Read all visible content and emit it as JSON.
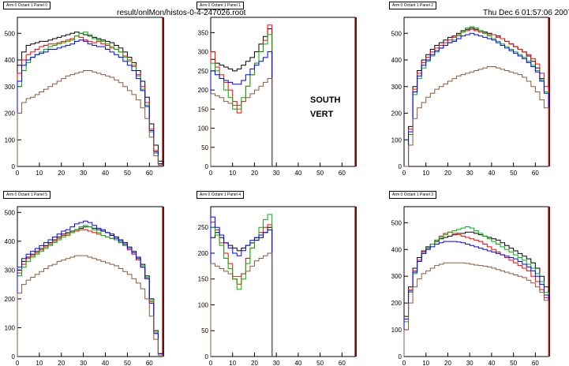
{
  "header": {
    "filename": "result/onlMon/histos-0-4-247026.root",
    "timestamp": "Thu Dec  6 01:57:06 2007"
  },
  "annotations": [
    "SOUTH",
    "VERT"
  ],
  "colors": [
    "#000000",
    "#ff0000",
    "#00b000",
    "#0000ff",
    "#8b5a3c"
  ],
  "chart_data": [
    {
      "type": "line",
      "title": "Arm 0 Octant 1 Panel 0",
      "xlim": [
        0,
        66
      ],
      "ylim": [
        0,
        560
      ],
      "xticks": [
        0,
        10,
        20,
        30,
        40,
        50,
        60
      ],
      "yticks": [
        0,
        100,
        200,
        300,
        400,
        500
      ],
      "x": [
        0,
        2,
        4,
        6,
        8,
        10,
        12,
        14,
        16,
        18,
        20,
        22,
        24,
        26,
        28,
        30,
        32,
        34,
        36,
        38,
        40,
        42,
        44,
        46,
        48,
        50,
        52,
        54,
        56,
        58,
        60,
        62,
        64
      ],
      "series": [
        {
          "values": [
            380,
            430,
            455,
            460,
            465,
            470,
            470,
            475,
            480,
            485,
            490,
            495,
            500,
            505,
            500,
            495,
            490,
            485,
            480,
            475,
            470,
            465,
            455,
            445,
            430,
            410,
            390,
            360,
            320,
            260,
            160,
            80,
            20
          ]
        },
        {
          "values": [
            350,
            400,
            420,
            430,
            440,
            450,
            455,
            460,
            460,
            465,
            470,
            475,
            480,
            490,
            485,
            475,
            470,
            465,
            470,
            460,
            455,
            445,
            440,
            430,
            415,
            400,
            380,
            345,
            300,
            240,
            140,
            60,
            10
          ]
        },
        {
          "values": [
            300,
            360,
            390,
            410,
            420,
            430,
            440,
            450,
            455,
            460,
            465,
            470,
            475,
            490,
            500,
            505,
            495,
            480,
            475,
            470,
            460,
            450,
            440,
            430,
            410,
            395,
            375,
            340,
            290,
            230,
            130,
            50,
            10
          ]
        },
        {
          "values": [
            320,
            380,
            400,
            410,
            420,
            425,
            430,
            440,
            440,
            445,
            450,
            455,
            460,
            470,
            475,
            470,
            460,
            455,
            450,
            450,
            440,
            430,
            420,
            410,
            395,
            380,
            360,
            330,
            285,
            225,
            135,
            55,
            10
          ]
        },
        {
          "values": [
            200,
            240,
            255,
            260,
            270,
            280,
            290,
            300,
            310,
            320,
            330,
            340,
            345,
            350,
            355,
            360,
            360,
            355,
            350,
            345,
            340,
            335,
            325,
            315,
            300,
            285,
            270,
            250,
            220,
            180,
            110,
            40,
            5
          ]
        }
      ]
    },
    {
      "type": "line",
      "title": "Arm 0 Octant 1 Panel 1",
      "xlim": [
        0,
        66
      ],
      "ylim": [
        0,
        390
      ],
      "xticks": [
        0,
        10,
        20,
        30,
        40,
        50,
        60
      ],
      "yticks": [
        0,
        50,
        100,
        150,
        200,
        250,
        300,
        350
      ],
      "x": [
        0,
        2,
        4,
        6,
        8,
        10,
        12,
        14,
        16,
        18,
        20,
        22,
        24,
        26
      ],
      "series": [
        {
          "values": [
            280,
            270,
            265,
            260,
            255,
            250,
            255,
            265,
            275,
            285,
            300,
            320,
            340,
            360
          ]
        },
        {
          "values": [
            300,
            260,
            240,
            220,
            200,
            170,
            140,
            170,
            210,
            240,
            270,
            300,
            330,
            370
          ]
        },
        {
          "values": [
            270,
            250,
            230,
            200,
            180,
            150,
            150,
            180,
            210,
            240,
            270,
            300,
            320,
            345
          ]
        },
        {
          "values": [
            250,
            240,
            230,
            225,
            220,
            215,
            215,
            225,
            240,
            255,
            265,
            275,
            285,
            300
          ]
        },
        {
          "values": [
            190,
            185,
            180,
            170,
            165,
            160,
            160,
            170,
            180,
            190,
            200,
            210,
            220,
            230
          ]
        }
      ]
    },
    {
      "type": "line",
      "title": "Arm 0 Octant 1 Panel 2",
      "xlim": [
        0,
        66
      ],
      "ylim": [
        0,
        560
      ],
      "xticks": [
        0,
        10,
        20,
        30,
        40,
        50,
        60
      ],
      "yticks": [
        0,
        100,
        200,
        300,
        400,
        500
      ],
      "x": [
        0,
        2,
        4,
        6,
        8,
        10,
        12,
        14,
        16,
        18,
        20,
        22,
        24,
        26,
        28,
        30,
        32,
        34,
        36,
        38,
        40,
        42,
        44,
        46,
        48,
        50,
        52,
        54,
        56,
        58,
        60,
        62,
        64
      ],
      "series": [
        {
          "values": [
            0,
            150,
            300,
            360,
            400,
            420,
            440,
            455,
            465,
            475,
            485,
            490,
            500,
            510,
            515,
            520,
            515,
            510,
            505,
            500,
            495,
            490,
            480,
            470,
            460,
            450,
            440,
            430,
            415,
            395,
            370,
            330,
            280
          ]
        },
        {
          "values": [
            0,
            140,
            290,
            350,
            390,
            410,
            430,
            445,
            455,
            465,
            475,
            485,
            495,
            505,
            510,
            515,
            510,
            505,
            500,
            495,
            495,
            485,
            480,
            470,
            460,
            450,
            440,
            430,
            420,
            405,
            385,
            350,
            300
          ]
        },
        {
          "values": [
            0,
            120,
            270,
            330,
            370,
            395,
            415,
            430,
            445,
            455,
            465,
            475,
            490,
            505,
            520,
            525,
            520,
            510,
            500,
            490,
            480,
            470,
            460,
            450,
            440,
            430,
            420,
            410,
            395,
            380,
            360,
            325,
            280
          ]
        },
        {
          "values": [
            0,
            130,
            280,
            340,
            380,
            400,
            420,
            435,
            445,
            455,
            465,
            470,
            480,
            490,
            495,
            500,
            495,
            490,
            485,
            480,
            475,
            465,
            455,
            445,
            435,
            425,
            415,
            405,
            390,
            375,
            355,
            320,
            275
          ]
        },
        {
          "values": [
            0,
            80,
            180,
            220,
            240,
            260,
            275,
            290,
            300,
            310,
            320,
            330,
            340,
            345,
            350,
            355,
            360,
            365,
            370,
            375,
            375,
            370,
            365,
            360,
            355,
            350,
            345,
            335,
            320,
            300,
            280,
            250,
            220
          ]
        }
      ]
    },
    {
      "type": "line",
      "title": "Arm 0 Octant 1 Panel 5",
      "xlim": [
        0,
        66
      ],
      "ylim": [
        0,
        520
      ],
      "xticks": [
        0,
        10,
        20,
        30,
        40,
        50,
        60
      ],
      "yticks": [
        0,
        100,
        200,
        300,
        400,
        500
      ],
      "x": [
        0,
        2,
        4,
        6,
        8,
        10,
        12,
        14,
        16,
        18,
        20,
        22,
        24,
        26,
        28,
        30,
        32,
        34,
        36,
        38,
        40,
        42,
        44,
        46,
        48,
        50,
        52,
        54,
        56,
        58,
        60,
        62,
        64
      ],
      "series": [
        {
          "values": [
            300,
            330,
            345,
            355,
            365,
            375,
            385,
            395,
            405,
            415,
            425,
            430,
            435,
            440,
            445,
            450,
            450,
            445,
            440,
            435,
            430,
            425,
            415,
            405,
            395,
            380,
            365,
            345,
            320,
            280,
            200,
            90,
            10
          ]
        },
        {
          "values": [
            290,
            320,
            340,
            350,
            360,
            370,
            380,
            390,
            400,
            410,
            420,
            425,
            430,
            435,
            440,
            440,
            435,
            430,
            425,
            420,
            415,
            410,
            405,
            395,
            385,
            370,
            355,
            335,
            310,
            270,
            190,
            80,
            10
          ]
        },
        {
          "values": [
            280,
            310,
            330,
            345,
            355,
            365,
            375,
            385,
            395,
            405,
            415,
            420,
            430,
            440,
            450,
            455,
            450,
            440,
            430,
            420,
            415,
            410,
            405,
            395,
            385,
            375,
            360,
            340,
            315,
            275,
            195,
            85,
            10
          ]
        },
        {
          "values": [
            310,
            340,
            355,
            365,
            375,
            385,
            395,
            405,
            415,
            425,
            435,
            440,
            450,
            460,
            465,
            470,
            465,
            455,
            445,
            440,
            430,
            420,
            410,
            400,
            390,
            375,
            360,
            340,
            310,
            270,
            185,
            80,
            10
          ]
        },
        {
          "values": [
            220,
            250,
            265,
            275,
            285,
            295,
            305,
            315,
            320,
            330,
            335,
            340,
            345,
            350,
            350,
            350,
            345,
            340,
            335,
            330,
            325,
            320,
            315,
            305,
            295,
            285,
            270,
            255,
            235,
            200,
            140,
            60,
            5
          ]
        }
      ]
    },
    {
      "type": "line",
      "title": "Arm 0 Octant 1 Panel 4",
      "xlim": [
        0,
        66
      ],
      "ylim": [
        0,
        290
      ],
      "xticks": [
        0,
        10,
        20,
        30,
        40,
        50,
        60
      ],
      "yticks": [
        0,
        50,
        100,
        150,
        200,
        250
      ],
      "x": [
        0,
        2,
        4,
        6,
        8,
        10,
        12,
        14,
        16,
        18,
        20,
        22,
        24,
        26
      ],
      "series": [
        {
          "values": [
            230,
            240,
            230,
            220,
            215,
            210,
            205,
            210,
            215,
            220,
            225,
            230,
            240,
            250
          ]
        },
        {
          "values": [
            260,
            245,
            220,
            200,
            180,
            150,
            140,
            160,
            190,
            210,
            230,
            240,
            250,
            255
          ]
        },
        {
          "values": [
            250,
            235,
            215,
            190,
            170,
            150,
            130,
            150,
            180,
            210,
            230,
            250,
            265,
            275
          ]
        },
        {
          "values": [
            270,
            250,
            235,
            220,
            210,
            200,
            195,
            205,
            215,
            225,
            230,
            235,
            240,
            245
          ]
        },
        {
          "values": [
            180,
            175,
            170,
            165,
            160,
            155,
            155,
            160,
            165,
            175,
            185,
            190,
            195,
            200
          ]
        }
      ]
    },
    {
      "type": "line",
      "title": "Arm 0 Octant 1 Panel 3",
      "xlim": [
        0,
        66
      ],
      "ylim": [
        0,
        560
      ],
      "xticks": [
        0,
        10,
        20,
        30,
        40,
        50,
        60
      ],
      "yticks": [
        0,
        100,
        200,
        300,
        400,
        500
      ],
      "x": [
        0,
        2,
        4,
        6,
        8,
        10,
        12,
        14,
        16,
        18,
        20,
        22,
        24,
        26,
        28,
        30,
        32,
        34,
        36,
        38,
        40,
        42,
        44,
        46,
        48,
        50,
        52,
        54,
        56,
        58,
        60,
        62,
        64
      ],
      "series": [
        {
          "values": [
            150,
            260,
            330,
            370,
            395,
            410,
            420,
            430,
            440,
            445,
            450,
            455,
            460,
            460,
            465,
            465,
            460,
            455,
            450,
            445,
            440,
            435,
            425,
            415,
            405,
            395,
            385,
            375,
            365,
            350,
            330,
            300,
            260
          ]
        },
        {
          "values": [
            140,
            250,
            320,
            360,
            390,
            405,
            420,
            435,
            450,
            460,
            465,
            460,
            455,
            450,
            445,
            440,
            435,
            430,
            420,
            410,
            400,
            390,
            380,
            370,
            360,
            350,
            340,
            330,
            320,
            300,
            280,
            250,
            220
          ]
        },
        {
          "values": [
            130,
            240,
            310,
            355,
            385,
            405,
            420,
            435,
            445,
            455,
            465,
            470,
            475,
            480,
            485,
            480,
            470,
            460,
            450,
            440,
            430,
            420,
            410,
            400,
            390,
            380,
            370,
            360,
            345,
            330,
            310,
            280,
            240
          ]
        },
        {
          "values": [
            140,
            245,
            315,
            355,
            385,
            400,
            410,
            420,
            425,
            430,
            430,
            430,
            428,
            425,
            420,
            415,
            410,
            405,
            400,
            395,
            390,
            385,
            380,
            375,
            370,
            365,
            355,
            345,
            335,
            320,
            300,
            270,
            230
          ]
        },
        {
          "values": [
            100,
            200,
            260,
            290,
            310,
            320,
            330,
            340,
            345,
            350,
            350,
            350,
            350,
            350,
            348,
            345,
            342,
            340,
            338,
            335,
            330,
            325,
            320,
            315,
            310,
            305,
            300,
            295,
            285,
            275,
            260,
            240,
            210
          ]
        }
      ]
    }
  ]
}
